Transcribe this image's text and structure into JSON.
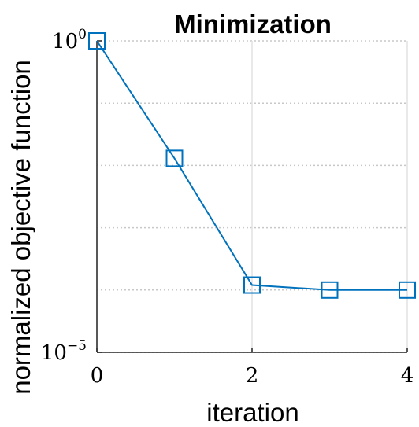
{
  "chart_data": {
    "type": "line",
    "title": "Minimization",
    "xlabel": "iteration",
    "ylabel": "normalized objective function",
    "xscale": "linear",
    "yscale": "log",
    "xlim": [
      0,
      4
    ],
    "ylim": [
      1e-05,
      1
    ],
    "xticks": [
      0,
      2,
      4
    ],
    "xtick_labels": [
      "0",
      "2",
      "4"
    ],
    "yticks": [
      1e-05,
      1
    ],
    "ytick_labels": [
      {
        "base": "10",
        "exp": "−5"
      },
      {
        "base": "10",
        "exp": "0"
      }
    ],
    "grid": true,
    "marker": "square",
    "color": "#0072bd",
    "x": [
      0,
      1,
      2,
      3,
      4
    ],
    "y": [
      1.0,
      0.013,
      0.00012,
      0.0001,
      0.0001
    ]
  }
}
